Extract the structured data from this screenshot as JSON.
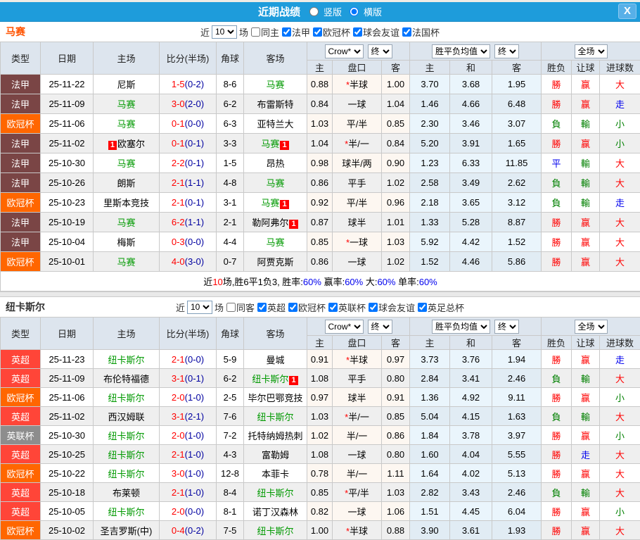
{
  "titlebar": {
    "title": "近期战绩",
    "view_options": [
      {
        "label": "竖版",
        "checked": false
      },
      {
        "label": "横版",
        "checked": true
      }
    ],
    "close_label": "X"
  },
  "table_headers": {
    "type": "类型",
    "date": "日期",
    "home": "主场",
    "score": "比分(半场)",
    "corner": "角球",
    "away": "客场",
    "odds_select": "Crow*",
    "final_select": "终",
    "avg_select": "胜平负均值",
    "scope_select": "全场",
    "odds_home": "主",
    "odds_pan": "盘口",
    "odds_away": "客",
    "avg_home": "主",
    "avg_draw": "和",
    "avg_away": "客",
    "res_wl": "胜负",
    "res_handicap": "让球",
    "res_goals": "进球数"
  },
  "filter_labels": {
    "prefix": "近",
    "suffix": "场"
  },
  "league_colors": {
    "法甲": "#7a4545",
    "欧冠杯": "#ff6600",
    "英超": "#ff4538",
    "英联杯": "#8d8d8d"
  },
  "palette": {
    "red": "#ff0000",
    "green": "#008000",
    "blue": "#0000ee",
    "score_red": "#ff0000",
    "half_navy": "#0000a0",
    "team_green": "#009900"
  },
  "sections": [
    {
      "team": "马赛",
      "team_color": "#ff5300",
      "filter": {
        "count": "10",
        "same": {
          "label": "同主",
          "checked": false
        },
        "leagues": [
          {
            "label": "法甲",
            "checked": true
          },
          {
            "label": "欧冠杯",
            "checked": true
          },
          {
            "label": "球会友谊",
            "checked": true
          },
          {
            "label": "法国杯",
            "checked": true
          }
        ]
      },
      "rows": [
        {
          "league": "法甲",
          "date": "25-11-22",
          "home": {
            "name": "尼斯",
            "green": false,
            "badge": null
          },
          "score": "1-5",
          "half": "(0-2)",
          "corner": "8-6",
          "away": {
            "name": "马赛",
            "green": true,
            "badge": null
          },
          "w1": "0.88",
          "pan_star": true,
          "pan": "半球",
          "w2": "1.00",
          "avg": [
            "3.70",
            "3.68",
            "1.95"
          ],
          "res": [
            {
              "t": "勝",
              "c": "red"
            },
            {
              "t": "赢",
              "c": "red"
            },
            {
              "t": "大",
              "c": "red"
            }
          ]
        },
        {
          "league": "法甲",
          "date": "25-11-09",
          "home": {
            "name": "马赛",
            "green": true,
            "badge": null
          },
          "score": "3-0",
          "half": "(2-0)",
          "corner": "6-2",
          "away": {
            "name": "布雷斯特",
            "green": false,
            "badge": null
          },
          "w1": "0.84",
          "pan_star": false,
          "pan": "一球",
          "w2": "1.04",
          "avg": [
            "1.46",
            "4.66",
            "6.48"
          ],
          "res": [
            {
              "t": "勝",
              "c": "red"
            },
            {
              "t": "赢",
              "c": "red"
            },
            {
              "t": "走",
              "c": "blue"
            }
          ]
        },
        {
          "league": "欧冠杯",
          "date": "25-11-06",
          "home": {
            "name": "马赛",
            "green": true,
            "badge": null
          },
          "score": "0-1",
          "half": "(0-0)",
          "corner": "6-3",
          "away": {
            "name": "亚特兰大",
            "green": false,
            "badge": null
          },
          "w1": "1.03",
          "pan_star": false,
          "pan": "平/半",
          "w2": "0.85",
          "avg": [
            "2.30",
            "3.46",
            "3.07"
          ],
          "res": [
            {
              "t": "負",
              "c": "greenr"
            },
            {
              "t": "輸",
              "c": "greenr"
            },
            {
              "t": "小",
              "c": "greenr"
            }
          ]
        },
        {
          "league": "法甲",
          "date": "25-11-02",
          "home": {
            "name": "欧塞尔",
            "green": false,
            "badge": "pre"
          },
          "score": "0-1",
          "half": "(0-1)",
          "corner": "3-3",
          "away": {
            "name": "马赛",
            "green": true,
            "badge": "post"
          },
          "w1": "1.04",
          "pan_star": true,
          "pan": "半/一",
          "w2": "0.84",
          "avg": [
            "5.20",
            "3.91",
            "1.65"
          ],
          "res": [
            {
              "t": "勝",
              "c": "red"
            },
            {
              "t": "赢",
              "c": "red"
            },
            {
              "t": "小",
              "c": "greenr"
            }
          ]
        },
        {
          "league": "法甲",
          "date": "25-10-30",
          "home": {
            "name": "马赛",
            "green": true,
            "badge": null
          },
          "score": "2-2",
          "half": "(0-1)",
          "corner": "1-5",
          "away": {
            "name": "昂热",
            "green": false,
            "badge": null
          },
          "w1": "0.98",
          "pan_star": false,
          "pan": "球半/两",
          "w2": "0.90",
          "avg": [
            "1.23",
            "6.33",
            "11.85"
          ],
          "res": [
            {
              "t": "平",
              "c": "blue"
            },
            {
              "t": "輸",
              "c": "greenr"
            },
            {
              "t": "大",
              "c": "red"
            }
          ]
        },
        {
          "league": "法甲",
          "date": "25-10-26",
          "home": {
            "name": "朗斯",
            "green": false,
            "badge": null
          },
          "score": "2-1",
          "half": "(1-1)",
          "corner": "4-8",
          "away": {
            "name": "马赛",
            "green": true,
            "badge": null
          },
          "w1": "0.86",
          "pan_star": false,
          "pan": "平手",
          "w2": "1.02",
          "avg": [
            "2.58",
            "3.49",
            "2.62"
          ],
          "res": [
            {
              "t": "負",
              "c": "greenr"
            },
            {
              "t": "輸",
              "c": "greenr"
            },
            {
              "t": "大",
              "c": "red"
            }
          ]
        },
        {
          "league": "欧冠杯",
          "date": "25-10-23",
          "home": {
            "name": "里斯本竞技",
            "green": false,
            "badge": null
          },
          "score": "2-1",
          "half": "(0-1)",
          "corner": "3-1",
          "away": {
            "name": "马赛",
            "green": true,
            "badge": "post"
          },
          "w1": "0.92",
          "pan_star": false,
          "pan": "平/半",
          "w2": "0.96",
          "avg": [
            "2.18",
            "3.65",
            "3.12"
          ],
          "res": [
            {
              "t": "負",
              "c": "greenr"
            },
            {
              "t": "輸",
              "c": "greenr"
            },
            {
              "t": "走",
              "c": "blue"
            }
          ]
        },
        {
          "league": "法甲",
          "date": "25-10-19",
          "home": {
            "name": "马赛",
            "green": true,
            "badge": null
          },
          "score": "6-2",
          "half": "(1-1)",
          "corner": "2-1",
          "away": {
            "name": "勒阿弗尔",
            "green": false,
            "badge": "post"
          },
          "w1": "0.87",
          "pan_star": false,
          "pan": "球半",
          "w2": "1.01",
          "avg": [
            "1.33",
            "5.28",
            "8.87"
          ],
          "res": [
            {
              "t": "勝",
              "c": "red"
            },
            {
              "t": "赢",
              "c": "red"
            },
            {
              "t": "大",
              "c": "red"
            }
          ]
        },
        {
          "league": "法甲",
          "date": "25-10-04",
          "home": {
            "name": "梅斯",
            "green": false,
            "badge": null
          },
          "score": "0-3",
          "half": "(0-0)",
          "corner": "4-4",
          "away": {
            "name": "马赛",
            "green": true,
            "badge": null
          },
          "w1": "0.85",
          "pan_star": true,
          "pan": "一球",
          "w2": "1.03",
          "avg": [
            "5.92",
            "4.42",
            "1.52"
          ],
          "res": [
            {
              "t": "勝",
              "c": "red"
            },
            {
              "t": "赢",
              "c": "red"
            },
            {
              "t": "大",
              "c": "red"
            }
          ]
        },
        {
          "league": "欧冠杯",
          "date": "25-10-01",
          "home": {
            "name": "马赛",
            "green": true,
            "badge": null
          },
          "score": "4-0",
          "half": "(3-0)",
          "corner": "0-7",
          "away": {
            "name": "阿贾克斯",
            "green": false,
            "badge": null
          },
          "w1": "0.86",
          "pan_star": false,
          "pan": "一球",
          "w2": "1.02",
          "avg": [
            "1.52",
            "4.46",
            "5.86"
          ],
          "res": [
            {
              "t": "勝",
              "c": "red"
            },
            {
              "t": "赢",
              "c": "red"
            },
            {
              "t": "大",
              "c": "red"
            }
          ]
        }
      ],
      "summary": [
        {
          "t": "近",
          "c": "black"
        },
        {
          "t": "10",
          "c": "red"
        },
        {
          "t": "场,胜6平1负3, 胜率:",
          "c": "black"
        },
        {
          "t": "60%",
          "c": "blue"
        },
        {
          "t": " 赢率:",
          "c": "black"
        },
        {
          "t": "60%",
          "c": "blue"
        },
        {
          "t": " 大:",
          "c": "black"
        },
        {
          "t": "60%",
          "c": "blue"
        },
        {
          "t": " 单率:",
          "c": "black"
        },
        {
          "t": "60%",
          "c": "blue"
        }
      ]
    },
    {
      "team": "纽卡斯尔",
      "team_color": "#333333",
      "filter": {
        "count": "10",
        "same": {
          "label": "同客",
          "checked": false
        },
        "leagues": [
          {
            "label": "英超",
            "checked": true
          },
          {
            "label": "欧冠杯",
            "checked": true
          },
          {
            "label": "英联杯",
            "checked": true
          },
          {
            "label": "球会友谊",
            "checked": true
          },
          {
            "label": "英足总杯",
            "checked": true
          }
        ]
      },
      "rows": [
        {
          "league": "英超",
          "date": "25-11-23",
          "home": {
            "name": "纽卡斯尔",
            "green": true,
            "badge": null
          },
          "score": "2-1",
          "half": "(0-0)",
          "corner": "5-9",
          "away": {
            "name": "曼城",
            "green": false,
            "badge": null
          },
          "w1": "0.91",
          "pan_star": true,
          "pan": "半球",
          "w2": "0.97",
          "avg": [
            "3.73",
            "3.76",
            "1.94"
          ],
          "res": [
            {
              "t": "勝",
              "c": "red"
            },
            {
              "t": "赢",
              "c": "red"
            },
            {
              "t": "走",
              "c": "blue"
            }
          ]
        },
        {
          "league": "英超",
          "date": "25-11-09",
          "home": {
            "name": "布伦特福德",
            "green": false,
            "badge": null
          },
          "score": "3-1",
          "half": "(0-1)",
          "corner": "6-2",
          "away": {
            "name": "纽卡斯尔",
            "green": true,
            "badge": "post"
          },
          "w1": "1.08",
          "pan_star": false,
          "pan": "平手",
          "w2": "0.80",
          "avg": [
            "2.84",
            "3.41",
            "2.46"
          ],
          "res": [
            {
              "t": "負",
              "c": "greenr"
            },
            {
              "t": "輸",
              "c": "greenr"
            },
            {
              "t": "大",
              "c": "red"
            }
          ]
        },
        {
          "league": "欧冠杯",
          "date": "25-11-06",
          "home": {
            "name": "纽卡斯尔",
            "green": true,
            "badge": null
          },
          "score": "2-0",
          "half": "(1-0)",
          "corner": "2-5",
          "away": {
            "name": "毕尔巴鄂竞技",
            "green": false,
            "badge": null
          },
          "w1": "0.97",
          "pan_star": false,
          "pan": "球半",
          "w2": "0.91",
          "avg": [
            "1.36",
            "4.92",
            "9.11"
          ],
          "res": [
            {
              "t": "勝",
              "c": "red"
            },
            {
              "t": "赢",
              "c": "red"
            },
            {
              "t": "小",
              "c": "greenr"
            }
          ]
        },
        {
          "league": "英超",
          "date": "25-11-02",
          "home": {
            "name": "西汉姆联",
            "green": false,
            "badge": null
          },
          "score": "3-1",
          "half": "(2-1)",
          "corner": "7-6",
          "away": {
            "name": "纽卡斯尔",
            "green": true,
            "badge": null
          },
          "w1": "1.03",
          "pan_star": true,
          "pan": "半/一",
          "w2": "0.85",
          "avg": [
            "5.04",
            "4.15",
            "1.63"
          ],
          "res": [
            {
              "t": "負",
              "c": "greenr"
            },
            {
              "t": "輸",
              "c": "greenr"
            },
            {
              "t": "大",
              "c": "red"
            }
          ]
        },
        {
          "league": "英联杯",
          "date": "25-10-30",
          "home": {
            "name": "纽卡斯尔",
            "green": true,
            "badge": null
          },
          "score": "2-0",
          "half": "(1-0)",
          "corner": "7-2",
          "away": {
            "name": "托特纳姆热刺",
            "green": false,
            "badge": null
          },
          "w1": "1.02",
          "pan_star": false,
          "pan": "半/一",
          "w2": "0.86",
          "avg": [
            "1.84",
            "3.78",
            "3.97"
          ],
          "res": [
            {
              "t": "勝",
              "c": "red"
            },
            {
              "t": "赢",
              "c": "red"
            },
            {
              "t": "小",
              "c": "greenr"
            }
          ]
        },
        {
          "league": "英超",
          "date": "25-10-25",
          "home": {
            "name": "纽卡斯尔",
            "green": true,
            "badge": null
          },
          "score": "2-1",
          "half": "(1-0)",
          "corner": "4-3",
          "away": {
            "name": "富勒姆",
            "green": false,
            "badge": null
          },
          "w1": "1.08",
          "pan_star": false,
          "pan": "一球",
          "w2": "0.80",
          "avg": [
            "1.60",
            "4.04",
            "5.55"
          ],
          "res": [
            {
              "t": "勝",
              "c": "red"
            },
            {
              "t": "走",
              "c": "blue"
            },
            {
              "t": "大",
              "c": "red"
            }
          ]
        },
        {
          "league": "欧冠杯",
          "date": "25-10-22",
          "home": {
            "name": "纽卡斯尔",
            "green": true,
            "badge": null
          },
          "score": "3-0",
          "half": "(1-0)",
          "corner": "12-8",
          "away": {
            "name": "本菲卡",
            "green": false,
            "badge": null
          },
          "w1": "0.78",
          "pan_star": false,
          "pan": "半/一",
          "w2": "1.11",
          "avg": [
            "1.64",
            "4.02",
            "5.13"
          ],
          "res": [
            {
              "t": "勝",
              "c": "red"
            },
            {
              "t": "赢",
              "c": "red"
            },
            {
              "t": "大",
              "c": "red"
            }
          ]
        },
        {
          "league": "英超",
          "date": "25-10-18",
          "home": {
            "name": "布莱顿",
            "green": false,
            "badge": null
          },
          "score": "2-1",
          "half": "(1-0)",
          "corner": "8-4",
          "away": {
            "name": "纽卡斯尔",
            "green": true,
            "badge": null
          },
          "w1": "0.85",
          "pan_star": true,
          "pan": "平/半",
          "w2": "1.03",
          "avg": [
            "2.82",
            "3.43",
            "2.46"
          ],
          "res": [
            {
              "t": "負",
              "c": "greenr"
            },
            {
              "t": "輸",
              "c": "greenr"
            },
            {
              "t": "大",
              "c": "red"
            }
          ]
        },
        {
          "league": "英超",
          "date": "25-10-05",
          "home": {
            "name": "纽卡斯尔",
            "green": true,
            "badge": null
          },
          "score": "2-0",
          "half": "(0-0)",
          "corner": "8-1",
          "away": {
            "name": "诺丁汉森林",
            "green": false,
            "badge": null
          },
          "w1": "0.82",
          "pan_star": false,
          "pan": "一球",
          "w2": "1.06",
          "avg": [
            "1.51",
            "4.45",
            "6.04"
          ],
          "res": [
            {
              "t": "勝",
              "c": "red"
            },
            {
              "t": "赢",
              "c": "red"
            },
            {
              "t": "小",
              "c": "greenr"
            }
          ]
        },
        {
          "league": "欧冠杯",
          "date": "25-10-02",
          "home": {
            "name": "圣吉罗斯(中)",
            "green": false,
            "badge": null
          },
          "score": "0-4",
          "half": "(0-2)",
          "corner": "7-5",
          "away": {
            "name": "纽卡斯尔",
            "green": true,
            "badge": null
          },
          "w1": "1.00",
          "pan_star": true,
          "pan": "半球",
          "w2": "0.88",
          "avg": [
            "3.90",
            "3.61",
            "1.93"
          ],
          "res": [
            {
              "t": "勝",
              "c": "red"
            },
            {
              "t": "赢",
              "c": "red"
            },
            {
              "t": "大",
              "c": "red"
            }
          ]
        }
      ],
      "summary": null
    }
  ]
}
